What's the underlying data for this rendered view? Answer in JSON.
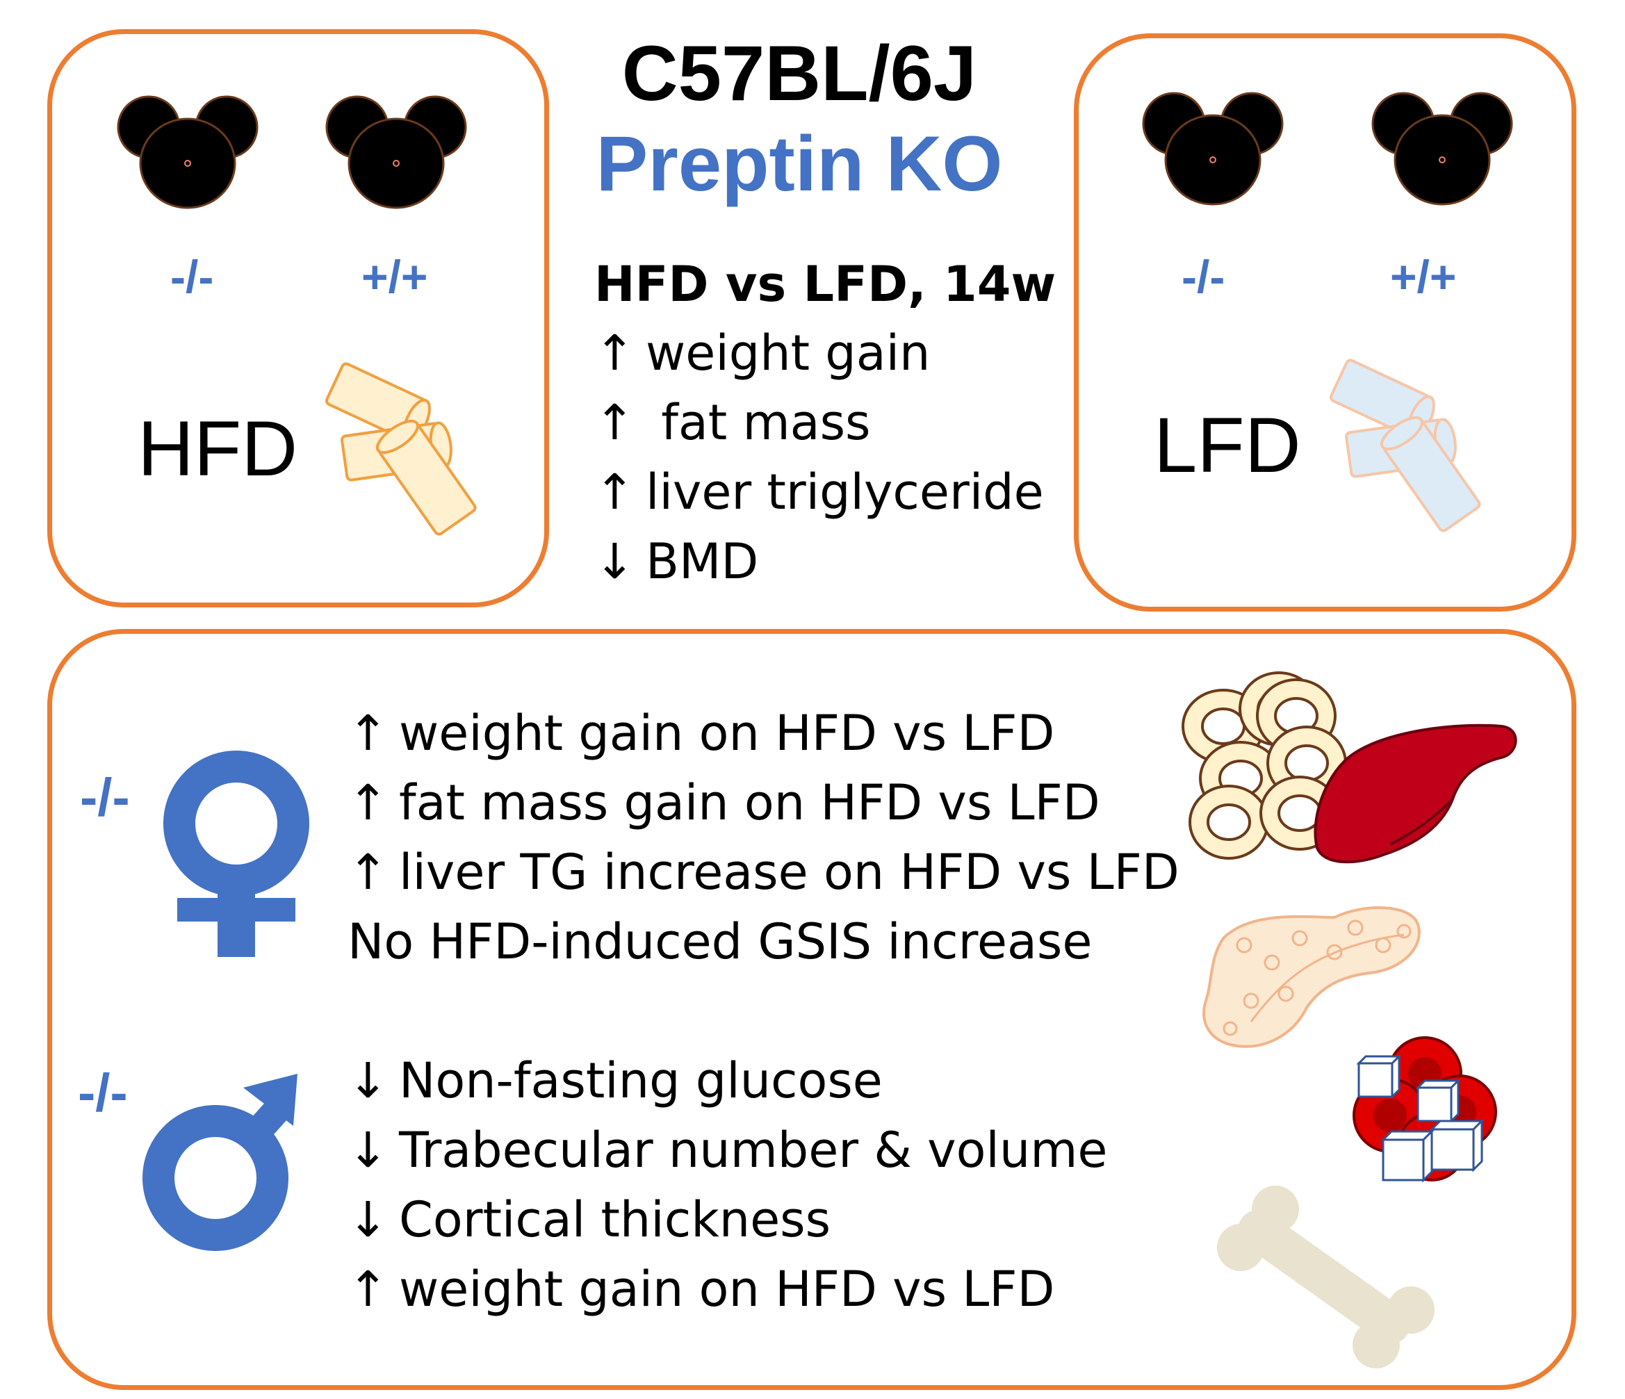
{
  "strain": "C57BL/6J",
  "model": "Preptin KO",
  "hfd_panel": {
    "geno_left": "-/-",
    "geno_right": "+/+",
    "diet": "HFD"
  },
  "lfd_panel": {
    "geno_left": "-/-",
    "geno_right": "+/+",
    "diet": "LFD"
  },
  "center": {
    "heading": "HFD vs LFD, 14w",
    "rows": [
      {
        "arrow": "↑",
        "text": "weight gain"
      },
      {
        "arrow": "↑",
        "text": " fat mass"
      },
      {
        "arrow": "↑",
        "text": "liver triglyceride"
      },
      {
        "arrow": "↓",
        "text": "BMD"
      }
    ]
  },
  "female": {
    "genotype": "-/-",
    "rows": [
      {
        "arrow": "↑",
        "text": "weight gain on HFD vs LFD"
      },
      {
        "arrow": "↑",
        "text": "fat mass gain on HFD vs LFD"
      },
      {
        "arrow": "↑",
        "text": "liver TG increase on HFD vs LFD"
      },
      {
        "arrow": "",
        "text": "No HFD-induced GSIS increase"
      }
    ]
  },
  "male": {
    "genotype": "-/-",
    "rows": [
      {
        "arrow": "↓",
        "text": "Non-fasting glucose"
      },
      {
        "arrow": "↓",
        "text": "Trabecular number & volume"
      },
      {
        "arrow": "↓",
        "text": "Cortical thickness"
      },
      {
        "arrow": "↑",
        "text": "weight gain on HFD vs LFD"
      }
    ]
  },
  "colors": {
    "border": "#ED7D31",
    "accent_blue": "#4472C4",
    "hfd_pellet": "#F0A040",
    "lfd_pellet": "#F6C6A8",
    "liver": "#C00018",
    "blood_cell": "#E00000",
    "bone": "#E8E2CE"
  },
  "icons": [
    "mouse-icon",
    "food-pellet-icon",
    "female-symbol-icon",
    "male-symbol-icon",
    "fat-cells-icon",
    "liver-icon",
    "pancreas-icon",
    "blood-cells-icon",
    "sugar-cube-icon",
    "bone-icon"
  ]
}
